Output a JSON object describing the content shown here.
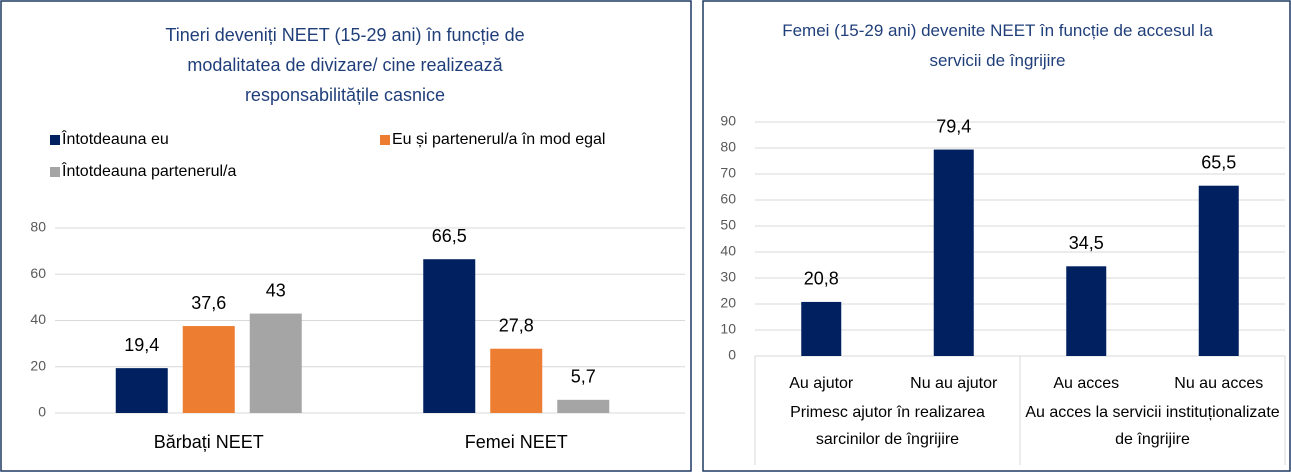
{
  "chart_data": [
    {
      "type": "bar",
      "title": "Tineri deveniți NEET (15-29 ani) în funcție de modalitatea de divizare/ cine realizează responsabilitățile casnice",
      "categories": [
        "Bărbați NEET",
        "Femei NEET"
      ],
      "series": [
        {
          "name": "Întotdeauna eu",
          "color": "#002060",
          "values": [
            19.4,
            66.5
          ],
          "value_labels": [
            "19,4",
            "66,5"
          ]
        },
        {
          "name": "Eu și partenerul/a în mod egal",
          "color": "#ED7D31",
          "values": [
            37.6,
            27.8
          ],
          "value_labels": [
            "37,6",
            "27,8"
          ]
        },
        {
          "name": "Întotdeauna partenerul/a",
          "color": "#A5A5A5",
          "values": [
            43,
            5.7
          ],
          "value_labels": [
            "43",
            "5,7"
          ]
        }
      ],
      "ylim": [
        0,
        80
      ],
      "yticks": [
        0,
        20,
        40,
        60,
        80
      ],
      "grid": true,
      "legend": "top"
    },
    {
      "type": "bar",
      "title": "Femei (15-29 ani) devenite NEET în funcție de accesul la servicii de îngrijire",
      "color": "#002060",
      "groups": [
        {
          "label": "Primesc ajutor în realizarea sarcinilor de îngrijire",
          "categories": [
            "Au ajutor",
            "Nu au ajutor"
          ],
          "values": [
            20.8,
            79.4
          ],
          "value_labels": [
            "20,8",
            "79,4"
          ]
        },
        {
          "label": "Au acces la servicii instituționalizate de îngrijire",
          "categories": [
            "Au acces",
            "Nu au acces"
          ],
          "values": [
            34.5,
            65.5
          ],
          "value_labels": [
            "34,5",
            "65,5"
          ]
        }
      ],
      "ylim": [
        0,
        90
      ],
      "yticks": [
        0,
        10,
        20,
        30,
        40,
        50,
        60,
        70,
        80,
        90
      ],
      "grid": true
    }
  ]
}
